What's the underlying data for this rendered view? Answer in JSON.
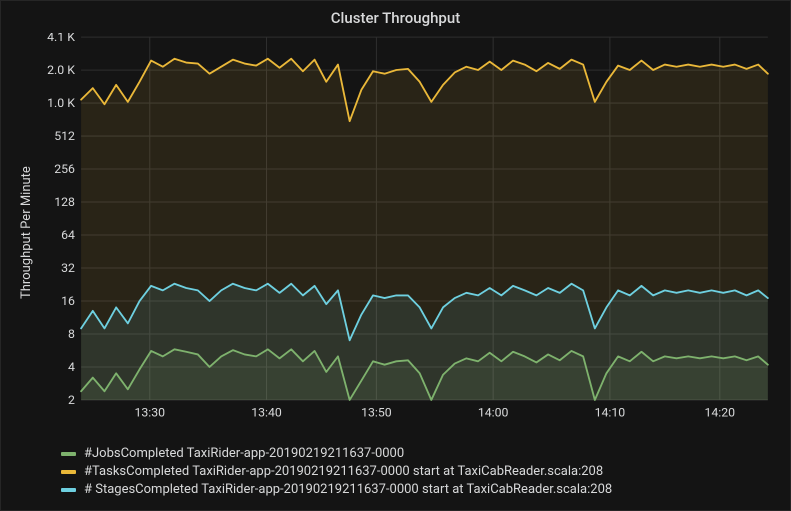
{
  "chart": {
    "type": "line-area-log",
    "title": "Cluster Throughput",
    "title_fontsize": 15,
    "ylabel": "Throughput Per Minute",
    "label_fontsize": 13,
    "axis_fontsize": 12,
    "legend_fontsize": 13,
    "background_color": "#141414",
    "panel_border_color": "#262626",
    "grid_color": "#2f2f2f",
    "text_color": "#d8d9da",
    "y_scale": "log2",
    "y_ticks": [
      2,
      4,
      8,
      16,
      32,
      64,
      128,
      256,
      512,
      1024,
      2048,
      4096
    ],
    "y_tick_labels": [
      "2",
      "4",
      "8",
      "16",
      "32",
      "64",
      "128",
      "256",
      "512",
      "1.0 K",
      "2.0 K",
      "4.1 K"
    ],
    "ylim_log2": [
      1,
      12
    ],
    "x_ticks": [
      "13:30",
      "13:40",
      "13:50",
      "14:00",
      "14:10",
      "14:20"
    ],
    "x_tick_positions": [
      0.1,
      0.27,
      0.43,
      0.6,
      0.77,
      0.93
    ],
    "x_range": [
      0,
      1
    ],
    "fill_opacity": 0.1,
    "line_width": 1.8,
    "x_points": [
      0.0,
      0.017,
      0.034,
      0.051,
      0.068,
      0.085,
      0.102,
      0.119,
      0.136,
      0.153,
      0.17,
      0.187,
      0.204,
      0.221,
      0.238,
      0.255,
      0.272,
      0.289,
      0.306,
      0.323,
      0.34,
      0.357,
      0.374,
      0.391,
      0.408,
      0.425,
      0.442,
      0.459,
      0.476,
      0.493,
      0.51,
      0.527,
      0.544,
      0.561,
      0.578,
      0.595,
      0.612,
      0.629,
      0.646,
      0.663,
      0.68,
      0.697,
      0.714,
      0.731,
      0.748,
      0.765,
      0.782,
      0.799,
      0.816,
      0.833,
      0.85,
      0.867,
      0.884,
      0.901,
      0.918,
      0.935,
      0.952,
      0.969,
      0.986,
      1.0
    ],
    "series": [
      {
        "key": "jobs",
        "label": "#JobsCompleted TaxiRider-app-20190219211637-0000",
        "color": "#7eb26d",
        "values": [
          2.4,
          3.2,
          2.4,
          3.5,
          2.5,
          3.8,
          5.6,
          5.0,
          5.8,
          5.5,
          5.2,
          4.0,
          5.0,
          5.7,
          5.2,
          5.0,
          5.8,
          4.8,
          5.8,
          4.5,
          5.6,
          3.6,
          5.0,
          2.0,
          3.0,
          4.5,
          4.2,
          4.5,
          4.6,
          3.5,
          2.0,
          3.4,
          4.3,
          4.8,
          4.5,
          5.4,
          4.5,
          5.5,
          5.0,
          4.4,
          5.2,
          4.6,
          5.6,
          5.0,
          2.0,
          3.5,
          5.0,
          4.5,
          5.5,
          4.5,
          5.0,
          4.8,
          5.0,
          4.8,
          5.0,
          4.8,
          5.0,
          4.6,
          5.0,
          4.2
        ]
      },
      {
        "key": "tasks",
        "label": "#TasksCompleted TaxiRider-app-20190219211637-0000 start at TaxiCabReader.scala:208",
        "color": "#eab839",
        "values": [
          1100,
          1400,
          1000,
          1500,
          1050,
          1600,
          2500,
          2200,
          2600,
          2400,
          2350,
          1900,
          2200,
          2550,
          2350,
          2250,
          2600,
          2150,
          2600,
          2000,
          2550,
          1600,
          2300,
          700,
          1350,
          2000,
          1900,
          2050,
          2100,
          1600,
          1050,
          1500,
          1950,
          2200,
          2050,
          2450,
          2050,
          2500,
          2300,
          2000,
          2380,
          2100,
          2550,
          2300,
          1050,
          1600,
          2250,
          2050,
          2500,
          2050,
          2300,
          2200,
          2300,
          2200,
          2300,
          2200,
          2300,
          2100,
          2300,
          1900
        ]
      },
      {
        "key": "stages",
        "label": "# StagesCompleted TaxiRider-app-20190219211637-0000 start at TaxiCabReader.scala:208",
        "color": "#6ed0e0",
        "values": [
          9,
          13,
          9,
          14,
          10,
          16,
          22,
          20,
          23,
          21,
          20,
          16,
          20,
          23,
          21,
          20,
          23,
          19,
          23,
          18,
          22,
          15,
          20,
          7,
          12,
          18,
          17,
          18,
          18,
          14,
          9,
          14,
          17,
          19,
          18,
          21,
          18,
          22,
          20,
          18,
          21,
          19,
          23,
          20,
          9,
          14,
          20,
          18,
          22,
          18,
          20,
          19,
          20,
          19,
          20,
          19,
          20,
          18,
          20,
          17
        ]
      }
    ],
    "legend_order": [
      "jobs",
      "tasks",
      "stages"
    ]
  }
}
